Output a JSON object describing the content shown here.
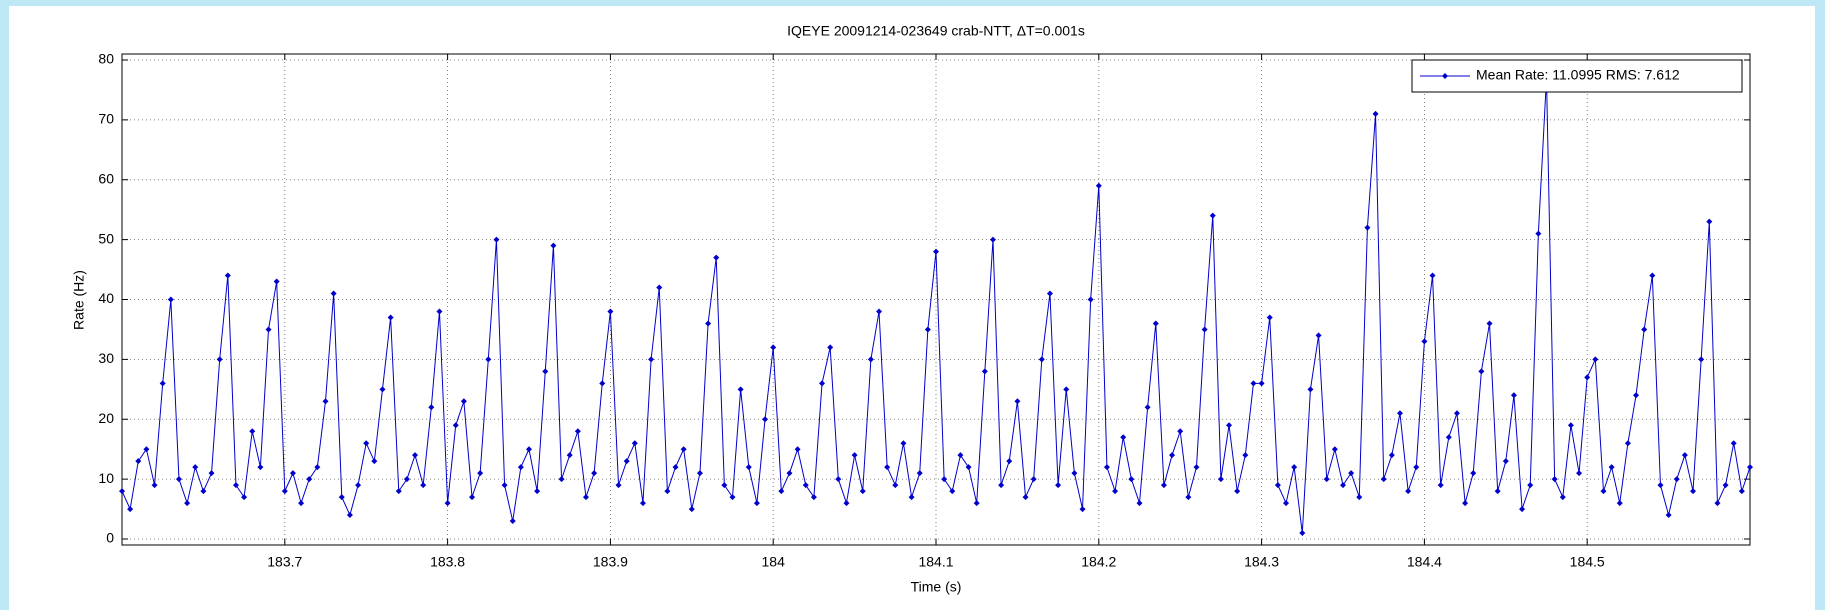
{
  "chart_data": {
    "type": "line",
    "title": "IQEYE 20091214-023649 crab-NTT, ΔT=0.001s",
    "x_label": "Time (s)",
    "y_label": "Rate (Hz)",
    "xlim": [
      183.6,
      184.6
    ],
    "ylim": [
      -1,
      81
    ],
    "xticks": [
      183.7,
      183.8,
      183.9,
      184,
      184.1,
      184.2,
      184.3,
      184.4,
      184.5
    ],
    "yticks": [
      0,
      10,
      20,
      30,
      40,
      50,
      60,
      70,
      80
    ],
    "grid": true,
    "legend": "upper right",
    "markers": true,
    "x": [
      183.6,
      183.605,
      183.61,
      183.615,
      183.62,
      183.625,
      183.63,
      183.635,
      183.64,
      183.645,
      183.65,
      183.655,
      183.66,
      183.665,
      183.67,
      183.675,
      183.68,
      183.685,
      183.69,
      183.695,
      183.7,
      183.705,
      183.71,
      183.715,
      183.72,
      183.725,
      183.73,
      183.735,
      183.74,
      183.745,
      183.75,
      183.755,
      183.76,
      183.765,
      183.77,
      183.775,
      183.78,
      183.785,
      183.79,
      183.795,
      183.8,
      183.805,
      183.81,
      183.815,
      183.82,
      183.825,
      183.83,
      183.835,
      183.84,
      183.845,
      183.85,
      183.855,
      183.86,
      183.865,
      183.87,
      183.875,
      183.88,
      183.885,
      183.89,
      183.895,
      183.9,
      183.905,
      183.91,
      183.915,
      183.92,
      183.925,
      183.93,
      183.935,
      183.94,
      183.945,
      183.95,
      183.955,
      183.96,
      183.965,
      183.97,
      183.975,
      183.98,
      183.985,
      183.99,
      183.995,
      184,
      184.005,
      184.01,
      184.015,
      184.02,
      184.025,
      184.03,
      184.035,
      184.04,
      184.045,
      184.05,
      184.055,
      184.06,
      184.065,
      184.07,
      184.075,
      184.08,
      184.085,
      184.09,
      184.095,
      184.1,
      184.105,
      184.11,
      184.115,
      184.12,
      184.125,
      184.13,
      184.135,
      184.14,
      184.145,
      184.15,
      184.155,
      184.16,
      184.165,
      184.17,
      184.175,
      184.18,
      184.185,
      184.19,
      184.195,
      184.2,
      184.205,
      184.21,
      184.215,
      184.22,
      184.225,
      184.23,
      184.235,
      184.24,
      184.245,
      184.25,
      184.255,
      184.26,
      184.265,
      184.27,
      184.275,
      184.28,
      184.285,
      184.29,
      184.295,
      184.3,
      184.305,
      184.31,
      184.315,
      184.32,
      184.325,
      184.33,
      184.335,
      184.34,
      184.345,
      184.35,
      184.355,
      184.36,
      184.365,
      184.37,
      184.375,
      184.38,
      184.385,
      184.39,
      184.395,
      184.4,
      184.405,
      184.41,
      184.415,
      184.42,
      184.425,
      184.43,
      184.435,
      184.44,
      184.445,
      184.45,
      184.455,
      184.46,
      184.465,
      184.47,
      184.475,
      184.48,
      184.485,
      184.49,
      184.495,
      184.5,
      184.505,
      184.51,
      184.515,
      184.52,
      184.525,
      184.53,
      184.535,
      184.54,
      184.545,
      184.55,
      184.555,
      184.56,
      184.565,
      184.57,
      184.575,
      184.58,
      184.585,
      184.59,
      184.595,
      184.6
    ],
    "series": [
      {
        "name": "Mean Rate: 11.0995 RMS: 7.612",
        "color": "#0000cc",
        "values": [
          8,
          5,
          13,
          15,
          9,
          26,
          40,
          10,
          6,
          12,
          8,
          11,
          30,
          44,
          9,
          7,
          18,
          12,
          35,
          43,
          8,
          11,
          6,
          10,
          12,
          23,
          41,
          7,
          4,
          9,
          16,
          13,
          25,
          37,
          8,
          10,
          14,
          9,
          22,
          38,
          6,
          19,
          23,
          7,
          11,
          30,
          50,
          9,
          3,
          12,
          15,
          8,
          28,
          49,
          10,
          14,
          18,
          7,
          11,
          26,
          38,
          9,
          13,
          16,
          6,
          30,
          42,
          8,
          12,
          15,
          5,
          11,
          36,
          47,
          9,
          7,
          25,
          12,
          6,
          20,
          32,
          8,
          11,
          15,
          9,
          7,
          26,
          32,
          10,
          6,
          14,
          8,
          30,
          38,
          12,
          9,
          16,
          7,
          11,
          35,
          48,
          10,
          8,
          14,
          12,
          6,
          28,
          50,
          9,
          13,
          23,
          7,
          10,
          30,
          41,
          9,
          25,
          11,
          5,
          40,
          59,
          12,
          8,
          17,
          10,
          6,
          22,
          36,
          9,
          14,
          18,
          7,
          12,
          35,
          54,
          10,
          19,
          8,
          14,
          26,
          26,
          37,
          9,
          6,
          12,
          1,
          25,
          34,
          10,
          15,
          9,
          11,
          7,
          52,
          71,
          10,
          14,
          21,
          8,
          12,
          33,
          44,
          9,
          17,
          21,
          6,
          11,
          28,
          36,
          8,
          13,
          24,
          5,
          9,
          51,
          77,
          10,
          7,
          19,
          11,
          27,
          30,
          8,
          12,
          6,
          16,
          24,
          35,
          44,
          9,
          4,
          10,
          14,
          8,
          30,
          53,
          6,
          9,
          16,
          8,
          12
        ]
      }
    ]
  }
}
